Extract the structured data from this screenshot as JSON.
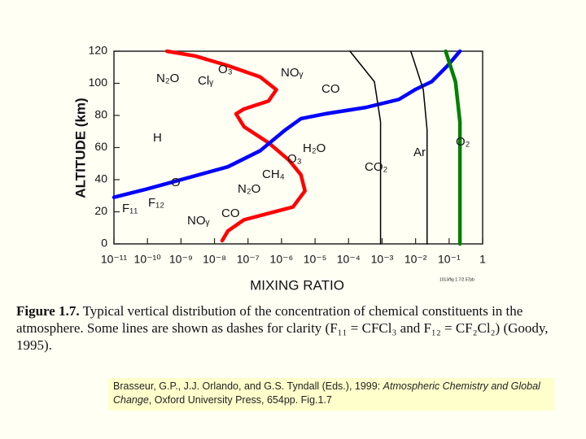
{
  "chart_data": {
    "type": "line",
    "xlabel": "MIXING RATIO",
    "ylabel": "ALTITUDE (km)",
    "note": "1013/fig 1.7/2.57pb",
    "xscale": "log",
    "xlim": [
      1e-11,
      1
    ],
    "ylim": [
      0,
      120
    ],
    "xticks": [
      {
        "value": 1e-11,
        "label": "10⁻¹¹"
      },
      {
        "value": 1e-10,
        "label": "10⁻¹⁰"
      },
      {
        "value": 1e-09,
        "label": "10⁻⁹"
      },
      {
        "value": 1e-08,
        "label": "10⁻⁸"
      },
      {
        "value": 1e-07,
        "label": "10⁻⁷"
      },
      {
        "value": 1e-06,
        "label": "10⁻⁶"
      },
      {
        "value": 1e-05,
        "label": "10⁻⁵"
      },
      {
        "value": 0.0001,
        "label": "10⁻⁴"
      },
      {
        "value": 0.001,
        "label": "10⁻³"
      },
      {
        "value": 0.01,
        "label": "10⁻²"
      },
      {
        "value": 0.1,
        "label": "10⁻¹"
      },
      1
    ],
    "yticks": [
      0,
      20,
      40,
      60,
      80,
      100,
      120
    ],
    "series": [
      {
        "name": "O₃",
        "color": "#ff0000",
        "x": [
          1.7e-08,
          2.5e-08,
          7.6e-08,
          4.1e-07,
          2.2e-06,
          5e-06,
          3.8e-06,
          1.7e-06,
          4.1e-07,
          7.6e-08,
          4.4e-08,
          7.6e-08,
          4.1e-07,
          7e-07,
          2.3e-07,
          2.5e-08,
          2.7e-09,
          3.8e-10
        ],
        "values": [
          2,
          8,
          15,
          19,
          23,
          33,
          43,
          52,
          63,
          73,
          81,
          84,
          89,
          96,
          104,
          111,
          117,
          120
        ]
      },
      {
        "name": "O",
        "color": "#0000ff",
        "x": [
          1e-11,
          9e-11,
          1.5e-09,
          2.5e-08,
          2.3e-07,
          1.3e-06,
          3.8e-06,
          2e-05,
          0.00033,
          0.0032,
          0.0095,
          0.03,
          0.09,
          0.21
        ],
        "values": [
          29,
          34,
          41,
          48,
          58,
          71,
          78,
          81,
          85,
          90,
          96,
          101,
          111,
          120
        ]
      },
      {
        "name": "O₂",
        "color": "#008000",
        "x": [
          0.21,
          0.21,
          0.155,
          0.079
        ],
        "values": [
          0,
          76,
          101,
          120
        ]
      },
      {
        "name": "CO₂",
        "color": "#000000",
        "x": [
          0.0009,
          0.0009,
          0.00059,
          0.00011
        ],
        "values": [
          0,
          76,
          101,
          120
        ]
      },
      {
        "name": "Ar",
        "color": "#000000",
        "x": [
          0.022,
          0.022,
          0.017,
          0.0072
        ],
        "values": [
          0,
          71,
          96,
          120
        ]
      }
    ],
    "annotations": [
      "N₂O",
      "Clᵧ",
      "O₃",
      "NOᵧ",
      "CO",
      "H",
      "H₂O",
      "CH₄",
      "N₂O",
      "F₁₂",
      "F₁₁",
      "NOᵧ",
      "CO"
    ]
  },
  "caption": {
    "label": "Figure 1.7.",
    "text": "Typical vertical distribution of the concentration of chemical constituents in the atmosphere. Some lines are shown as dashes for clarity (F₁₁ = CFCl₃ and F₁₂ = CF₂Cl₂) (Goody, 1995)."
  },
  "citation": {
    "authors": "Brasseur, G.P., J.J. Orlando, and G.S. Tyndall (Eds.), 1999:",
    "title": "Atmospheric Chemistry and Global Change",
    "publisher": ", Oxford University Press, 654pp. Fig.1.7"
  }
}
